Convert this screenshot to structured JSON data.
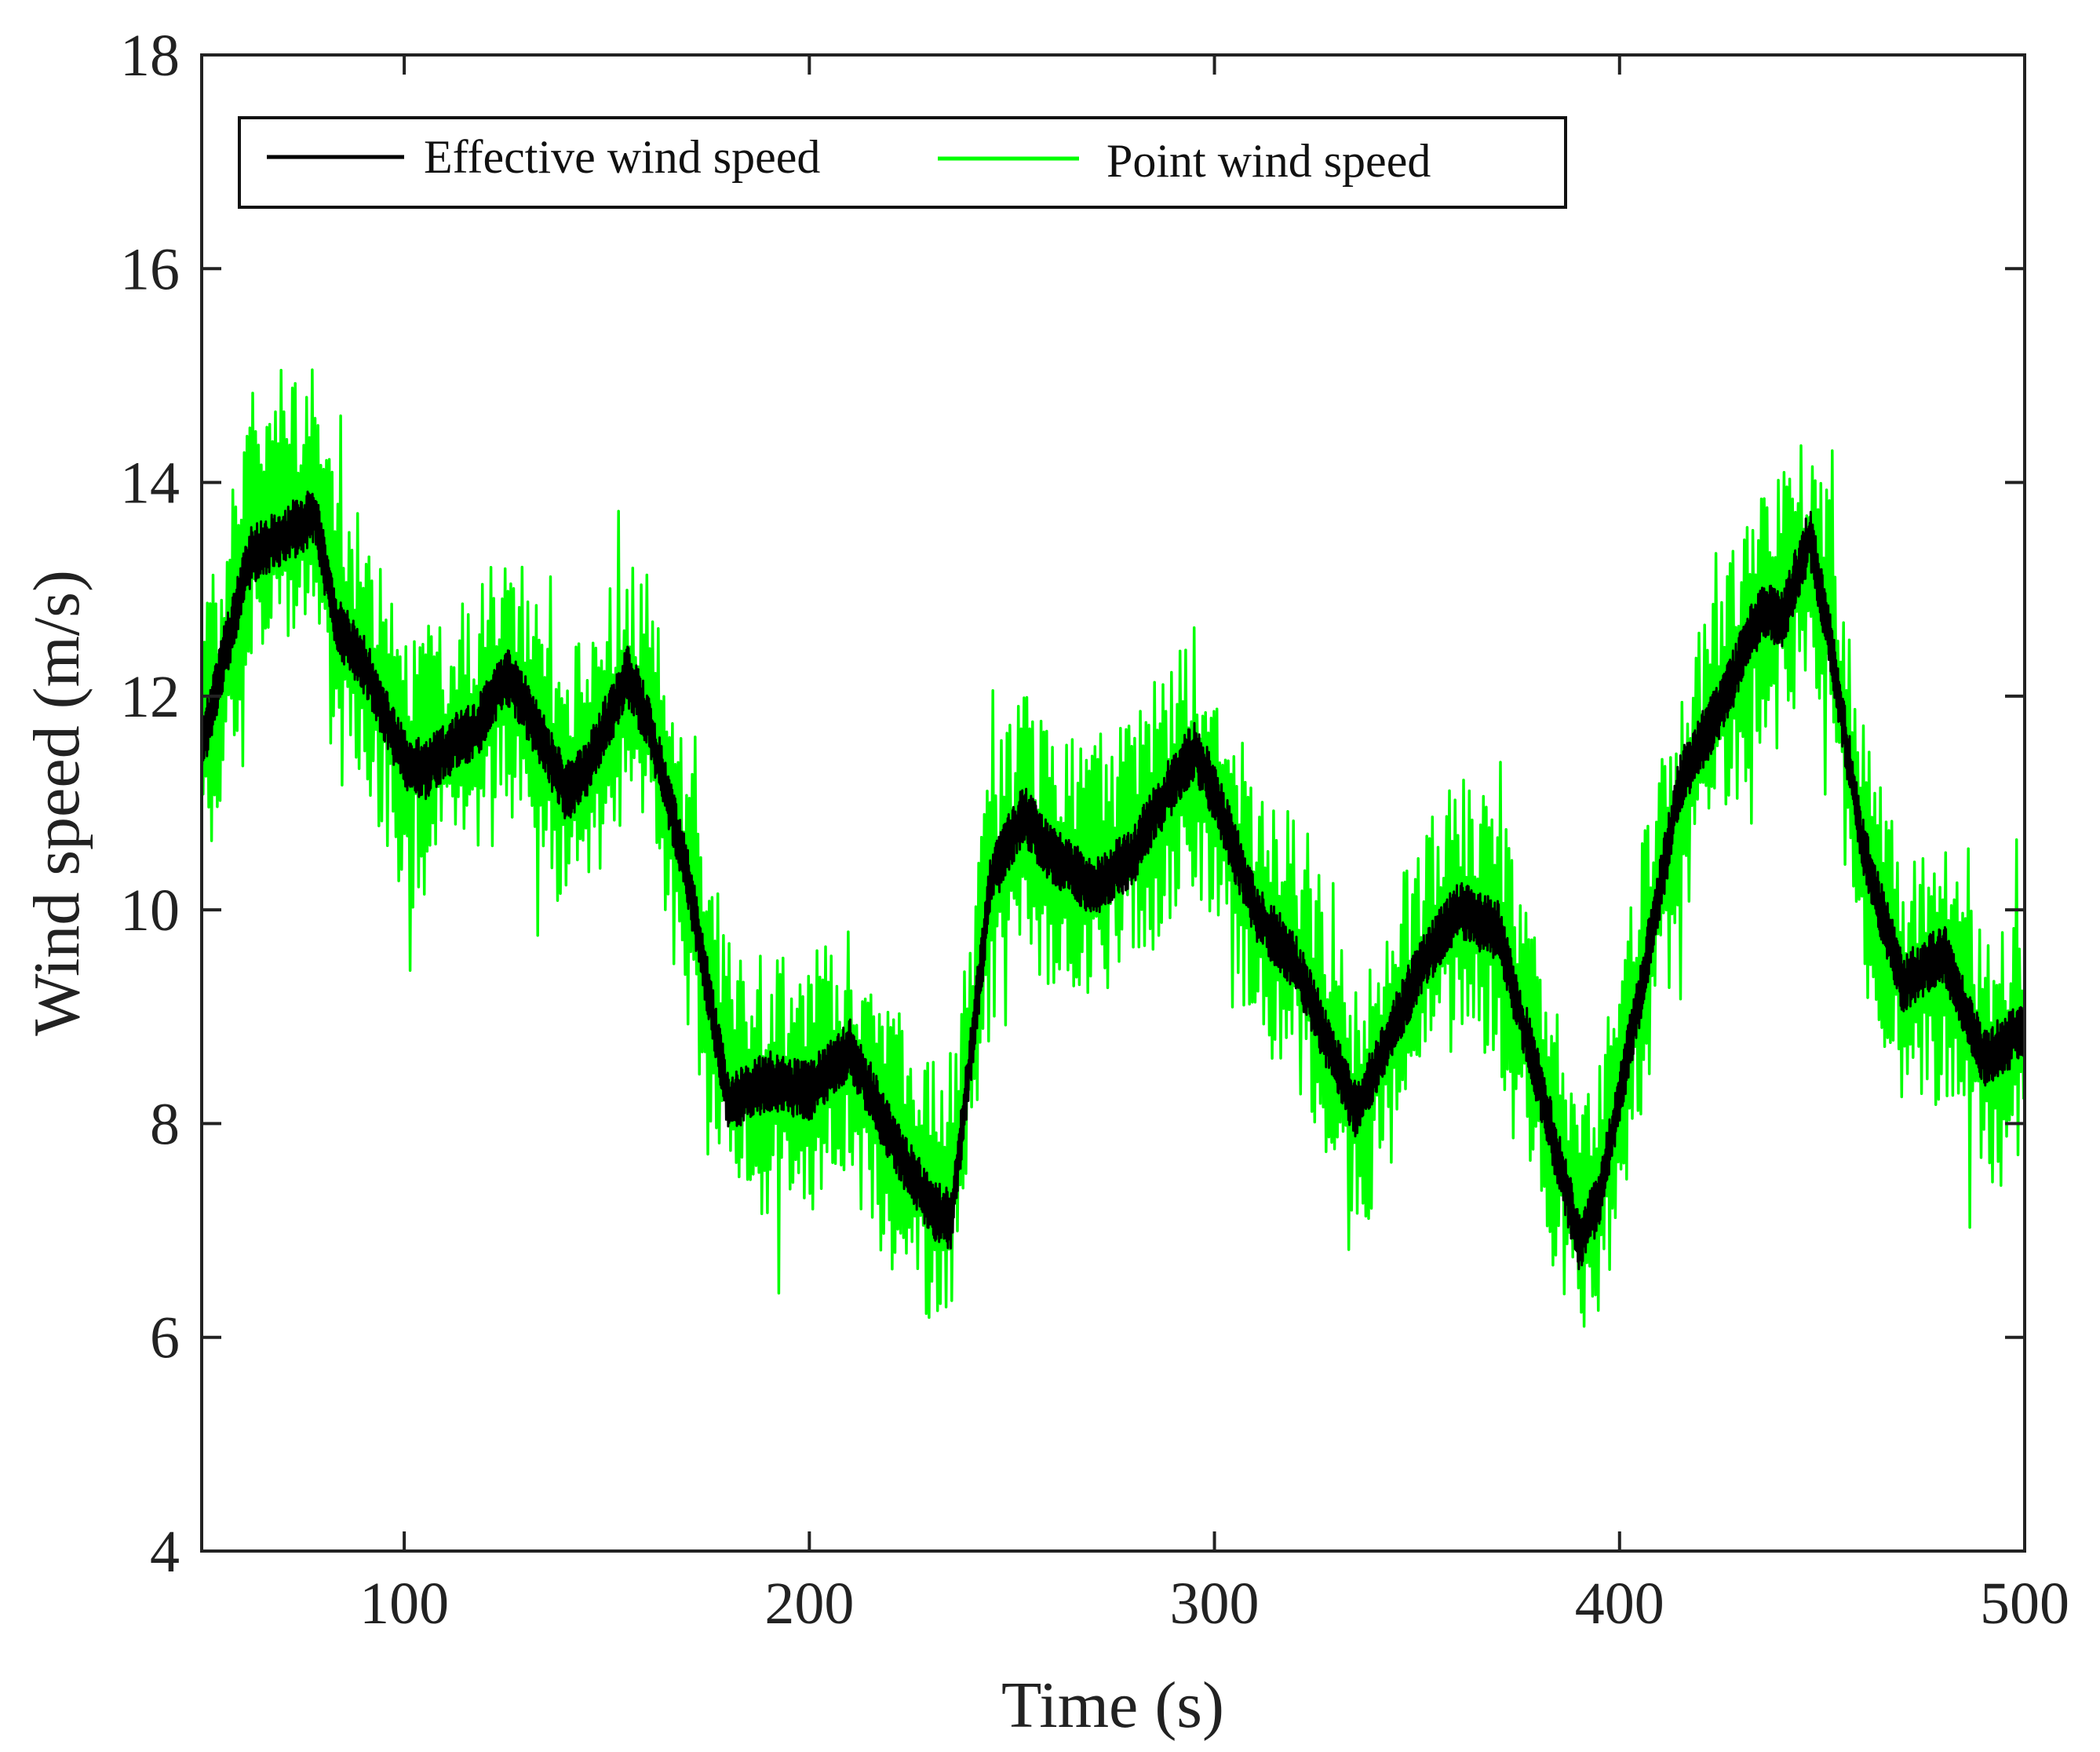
{
  "chart_data": {
    "type": "line",
    "title": "",
    "xlabel": "Time (s)",
    "ylabel": "Wind speed (m/s)",
    "xlim": [
      50,
      500
    ],
    "ylim": [
      4,
      18
    ],
    "xticks": [
      100,
      200,
      300,
      400,
      500
    ],
    "yticks": [
      4,
      6,
      8,
      10,
      12,
      14,
      16,
      18
    ],
    "xtick_labels": [
      "100",
      "200",
      "300",
      "400",
      "500"
    ],
    "ytick_labels": [
      "4",
      "6",
      "8",
      "10",
      "12",
      "14",
      "16",
      "18"
    ],
    "grid": false,
    "legend": {
      "position": "top-left",
      "orientation": "horizontal"
    },
    "series": [
      {
        "name": "Point wind speed",
        "color": "#00ff00",
        "noise_amplitude": 1.1,
        "trend_x": [
          50,
          55,
          62,
          70,
          78,
          83,
          90,
          100,
          105,
          113,
          118,
          125,
          130,
          140,
          145,
          155,
          160,
          170,
          180,
          190,
          200,
          210,
          220,
          230,
          235,
          245,
          253,
          260,
          270,
          280,
          285,
          295,
          300,
          310,
          320,
          335,
          350,
          360,
          370,
          380,
          390,
          395,
          405,
          415,
          425,
          435,
          440,
          447,
          452,
          460,
          470,
          480,
          490,
          500
        ],
        "trend_y": [
          11.5,
          12.2,
          13.6,
          13.8,
          13.5,
          12.8,
          12.4,
          11.4,
          11.4,
          11.6,
          11.8,
          12.2,
          11.9,
          11.2,
          11.3,
          12.1,
          11.8,
          10.2,
          8.5,
          8.3,
          8.4,
          8.6,
          7.9,
          7.3,
          7.5,
          10.2,
          10.8,
          10.4,
          10.3,
          10.6,
          10.9,
          11.4,
          11.1,
          10.0,
          9.6,
          8.1,
          9.4,
          10.0,
          9.8,
          8.4,
          7.0,
          7.3,
          9.3,
          11.0,
          12.0,
          12.7,
          12.8,
          13.3,
          12.6,
          10.6,
          9.3,
          9.4,
          8.6,
          8.8
        ]
      },
      {
        "name": "Effective wind speed",
        "color": "#000000",
        "noise_amplitude": 0.28,
        "trend_x": [
          50,
          55,
          62,
          70,
          78,
          83,
          90,
          100,
          105,
          113,
          118,
          125,
          130,
          140,
          145,
          155,
          160,
          170,
          180,
          190,
          200,
          210,
          220,
          230,
          235,
          245,
          253,
          260,
          270,
          280,
          285,
          295,
          300,
          310,
          320,
          335,
          350,
          360,
          370,
          380,
          390,
          395,
          405,
          415,
          425,
          435,
          440,
          447,
          452,
          460,
          470,
          480,
          490,
          500
        ],
        "trend_y": [
          11.5,
          12.3,
          13.3,
          13.5,
          13.7,
          12.7,
          12.3,
          11.4,
          11.3,
          11.6,
          11.7,
          12.2,
          11.9,
          11.1,
          11.3,
          12.2,
          11.8,
          10.3,
          8.2,
          8.4,
          8.3,
          8.7,
          7.9,
          7.2,
          7.1,
          10.3,
          10.9,
          10.5,
          10.2,
          10.5,
          10.9,
          11.5,
          11.1,
          10.0,
          9.5,
          8.1,
          9.4,
          10.0,
          9.8,
          8.4,
          6.9,
          7.3,
          9.2,
          11.2,
          11.9,
          12.8,
          12.7,
          13.5,
          12.5,
          10.6,
          9.3,
          9.6,
          8.6,
          8.9
        ]
      }
    ]
  }
}
